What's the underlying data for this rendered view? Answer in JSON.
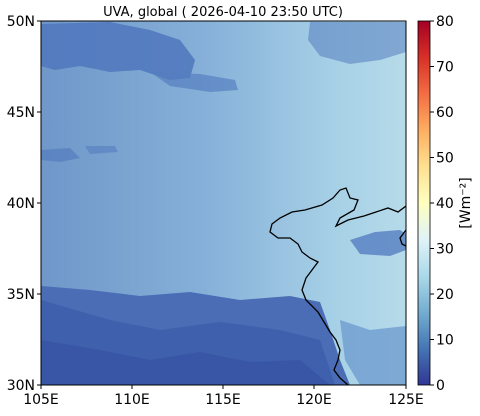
{
  "title": "UVA, global ( 2026-04-10 23:50 UTC)",
  "map": {
    "lon_ticks": [
      "105E",
      "110E",
      "115E",
      "120E",
      "125E"
    ],
    "lat_ticks": [
      "50N",
      "45N",
      "40N",
      "35N",
      "30N"
    ],
    "lon_range": [
      105,
      125
    ],
    "lat_range": [
      30,
      50
    ]
  },
  "colorbar": {
    "label": "[Wm$^{-2}$]",
    "label_display": "[Wm⁻²]",
    "ticks": [
      "80",
      "70",
      "60",
      "50",
      "40",
      "30",
      "20",
      "10",
      "0"
    ],
    "range": [
      0,
      80
    ],
    "colormap": "RdYlBu_r",
    "colors": [
      "#313695",
      "#4575b4",
      "#74add1",
      "#abd9e9",
      "#e0f3f8",
      "#ffffbf",
      "#fee090",
      "#fdae61",
      "#f46d43",
      "#d73027",
      "#a50026"
    ]
  },
  "colors": {
    "base_field": "#7ca6d2",
    "bright_field": "#b8dceb",
    "cloud_dark": "#3d5fae",
    "coastline": "#000000"
  }
}
